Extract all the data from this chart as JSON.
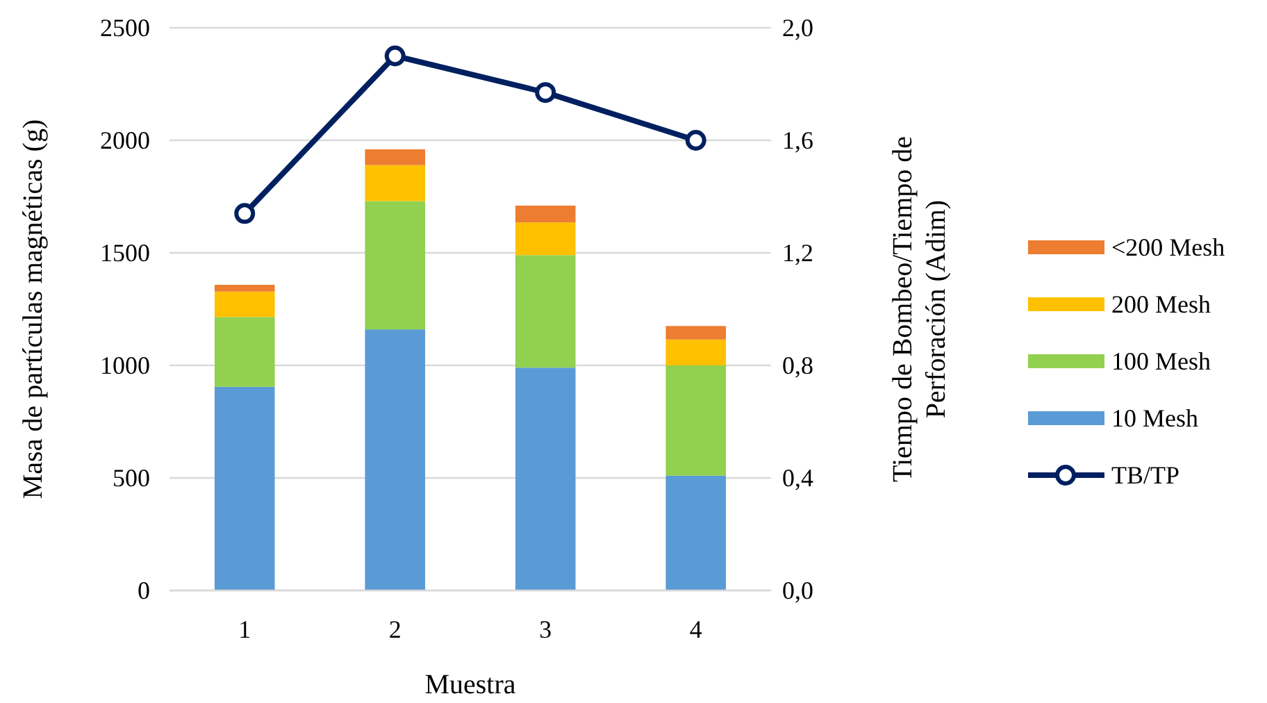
{
  "chart_data": {
    "type": "bar",
    "stacked": true,
    "xlabel": "Muestra",
    "ylabel": "Masa de partículas magnéticas (g)",
    "y2label": "Tiempo de Bombeo/Tiempo de Perforación (Adim)",
    "categories": [
      "1",
      "2",
      "3",
      "4"
    ],
    "ylim": [
      0,
      2500
    ],
    "yticks": [
      0,
      500,
      1000,
      1500,
      2000,
      2500
    ],
    "y2lim": [
      0,
      2
    ],
    "y2ticks": [
      {
        "value": 0,
        "label": "0,0"
      },
      {
        "value": 0.4,
        "label": "0,4"
      },
      {
        "value": 0.8,
        "label": "0,8"
      },
      {
        "value": 1.2,
        "label": "1,2"
      },
      {
        "value": 1.6,
        "label": "1,6"
      },
      {
        "value": 2,
        "label": "2,0"
      }
    ],
    "grid": "y",
    "legend": "right",
    "series": [
      {
        "name": "10 Mesh",
        "color": "#5b9bd5",
        "values": [
          905,
          1160,
          990,
          510
        ]
      },
      {
        "name": "100 Mesh",
        "color": "#92d050",
        "values": [
          310,
          570,
          500,
          490
        ]
      },
      {
        "name": "200 Mesh",
        "color": "#ffc000",
        "values": [
          113,
          160,
          145,
          115
        ]
      },
      {
        "name": "<200 Mesh",
        "color": "#ed7d31",
        "values": [
          30,
          70,
          75,
          60
        ]
      },
      {
        "name": "TB/TP",
        "type": "line",
        "axis": "y2",
        "color": "#002060",
        "marker": "circle",
        "line_style": "solid",
        "values": [
          1.34,
          1.9,
          1.77,
          1.6
        ]
      }
    ]
  }
}
